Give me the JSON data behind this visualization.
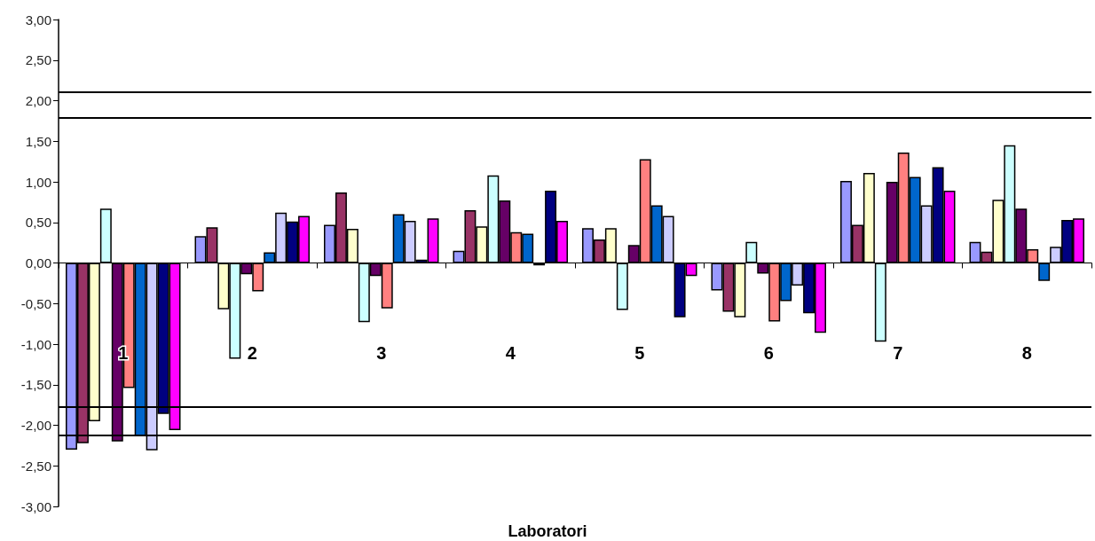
{
  "chart_data": {
    "type": "bar",
    "xlabel": "Laboratori",
    "categories": [
      "1",
      "2",
      "3",
      "4",
      "5",
      "6",
      "7",
      "8"
    ],
    "series": [
      {
        "color": "#9999ff",
        "values": [
          -2.3,
          0.33,
          0.47,
          0.15,
          0.43,
          -0.34,
          1.01,
          0.26
        ]
      },
      {
        "color": "#993366",
        "values": [
          -2.22,
          0.44,
          0.87,
          0.65,
          0.29,
          -0.6,
          0.47,
          0.14
        ]
      },
      {
        "color": "#ffffcc",
        "values": [
          -1.95,
          -0.57,
          0.42,
          0.45,
          0.43,
          -0.67,
          1.11,
          0.78
        ]
      },
      {
        "color": "#ccffff",
        "values": [
          0.67,
          -1.18,
          -0.73,
          1.08,
          -0.58,
          0.26,
          -0.97,
          1.45
        ]
      },
      {
        "color": "#660066",
        "values": [
          -2.2,
          -0.14,
          -0.16,
          0.77,
          0.22,
          -0.13,
          1.0,
          0.67
        ]
      },
      {
        "color": "#ff8080",
        "values": [
          -1.54,
          -0.35,
          -0.56,
          0.38,
          1.28,
          -0.72,
          1.36,
          0.17
        ]
      },
      {
        "color": "#0066cc",
        "values": [
          -2.13,
          0.13,
          0.6,
          0.36,
          0.71,
          -0.47,
          1.06,
          -0.22
        ]
      },
      {
        "color": "#ccccff",
        "values": [
          -2.31,
          0.62,
          0.52,
          -0.03,
          0.58,
          -0.28,
          0.71,
          0.2
        ]
      },
      {
        "color": "#000080",
        "values": [
          -1.86,
          0.51,
          0.04,
          0.89,
          -0.67,
          -0.62,
          1.18,
          0.53
        ]
      },
      {
        "color": "#ff00ff",
        "values": [
          -2.06,
          0.58,
          0.55,
          0.52,
          -0.16,
          -0.86,
          0.89,
          0.55
        ]
      }
    ],
    "ylim": [
      -3,
      3
    ],
    "yticks": [
      {
        "value": -3,
        "label": "-3,00"
      },
      {
        "value": -2.5,
        "label": "-2,50"
      },
      {
        "value": -2,
        "label": "-2,00"
      },
      {
        "value": -1.5,
        "label": "-1,50"
      },
      {
        "value": -1,
        "label": "-1,00"
      },
      {
        "value": -0.5,
        "label": "-0,50"
      },
      {
        "value": 0,
        "label": "0,00"
      },
      {
        "value": 0.5,
        "label": "0,50"
      },
      {
        "value": 1,
        "label": "1,00"
      },
      {
        "value": 1.5,
        "label": "1,50"
      },
      {
        "value": 2,
        "label": "2,00"
      },
      {
        "value": 2.5,
        "label": "2,50"
      },
      {
        "value": 3,
        "label": "3,00"
      }
    ],
    "ref_lines": [
      {
        "axis": "y",
        "value": 2.11,
        "color": "#000000"
      },
      {
        "axis": "y",
        "value": 1.79,
        "color": "#000000"
      },
      {
        "axis": "y",
        "value": -1.77,
        "color": "#000000"
      },
      {
        "axis": "y",
        "value": -2.12,
        "color": "#000000"
      }
    ]
  }
}
